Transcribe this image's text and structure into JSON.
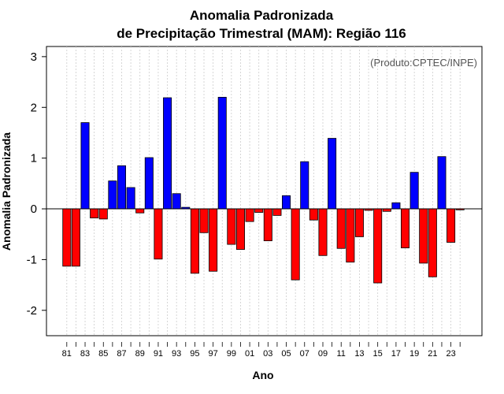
{
  "chart_data": {
    "type": "bar",
    "title_line1": "Anomalia Padronizada",
    "title_line2": "de Precipitação Trimestral (MAM): Região 116",
    "xlabel": "Ano",
    "ylabel": "Anomalia Padronizada",
    "credit": "(Produto:CPTEC/INPE)",
    "ylim": [
      -2.5,
      3.2
    ],
    "yticks": [
      "-2",
      "-1",
      "0",
      "1",
      "2",
      "3"
    ],
    "ytick_values": [
      -2,
      -1,
      0,
      1,
      2,
      3
    ],
    "xtick_labels": [
      "81",
      "83",
      "85",
      "87",
      "89",
      "91",
      "93",
      "95",
      "97",
      "99",
      "01",
      "03",
      "05",
      "07",
      "09",
      "11",
      "13",
      "15",
      "17",
      "19",
      "21",
      "23"
    ],
    "categories": [
      "1981",
      "1982",
      "1983",
      "1984",
      "1985",
      "1986",
      "1987",
      "1988",
      "1989",
      "1990",
      "1991",
      "1992",
      "1993",
      "1994",
      "1995",
      "1996",
      "1997",
      "1998",
      "1999",
      "2000",
      "2001",
      "2002",
      "2003",
      "2004",
      "2005",
      "2006",
      "2007",
      "2008",
      "2009",
      "2010",
      "2011",
      "2012",
      "2013",
      "2014",
      "2015",
      "2016",
      "2017",
      "2018",
      "2019",
      "2020",
      "2021",
      "2022",
      "2023",
      "2024"
    ],
    "values": [
      -1.13,
      -1.13,
      1.7,
      -0.18,
      -0.2,
      0.55,
      0.85,
      0.42,
      -0.08,
      1.01,
      -0.99,
      2.19,
      0.3,
      0.03,
      -1.27,
      -0.47,
      -1.23,
      2.2,
      -0.7,
      -0.8,
      -0.25,
      -0.07,
      -0.63,
      -0.13,
      0.26,
      -1.4,
      0.93,
      -0.22,
      -0.92,
      1.39,
      -0.78,
      -1.05,
      -0.55,
      -0.03,
      -1.46,
      -0.05,
      0.12,
      -0.77,
      0.72,
      -1.07,
      -1.34,
      1.03,
      -0.66,
      -0.02
    ],
    "positive_color": "#0000ff",
    "negative_color": "#ff0000",
    "grid": "vertical dotted"
  }
}
